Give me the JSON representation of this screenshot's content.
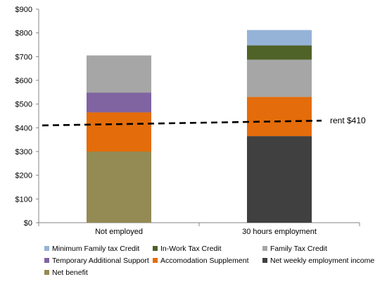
{
  "chart_data": {
    "type": "bar",
    "stacked": true,
    "categories": [
      "Not employed",
      "30 hours employment"
    ],
    "ylim": [
      0,
      900
    ],
    "yticks": [
      0,
      100,
      200,
      300,
      400,
      500,
      600,
      700,
      800,
      900
    ],
    "ytick_labels": [
      "$0",
      "$100",
      "$200",
      "$300",
      "$400",
      "$500",
      "$600",
      "$700",
      "$800",
      "$900"
    ],
    "grid": false,
    "legend_position": "bottom",
    "series": [
      {
        "name": "Net benefit",
        "color": "#948A54",
        "values": [
          300,
          0
        ]
      },
      {
        "name": "Net weekly employment income",
        "color": "#404040",
        "values": [
          0,
          365
        ]
      },
      {
        "name": "Accomodation Supplement",
        "color": "#E46C0A",
        "values": [
          165,
          165
        ]
      },
      {
        "name": "Temporary Additional Support",
        "color": "#8064A2",
        "values": [
          83,
          0
        ]
      },
      {
        "name": "Family Tax Credit",
        "color": "#A6A6A6",
        "values": [
          157,
          157
        ]
      },
      {
        "name": "In-Work Tax Credit",
        "color": "#4F6228",
        "values": [
          0,
          60
        ]
      },
      {
        "name": "Minimum Family tax Credit",
        "color": "#95B3D7",
        "values": [
          0,
          65
        ]
      }
    ],
    "annotation": {
      "label": "rent $410",
      "value": 410,
      "value_end": 430,
      "style": "dashed"
    },
    "legend_order": [
      "Minimum Family tax Credit",
      "In-Work Tax Credit",
      "Family Tax Credit",
      "Temporary Additional Support",
      "Accomodation Supplement",
      "Net weekly employment income",
      "Net benefit"
    ]
  }
}
